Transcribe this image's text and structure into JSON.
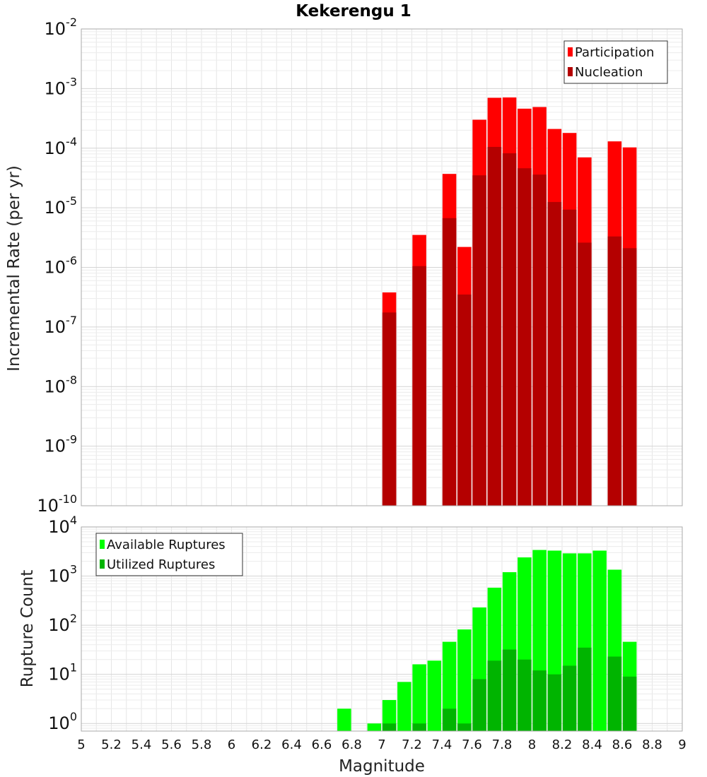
{
  "chart_data": [
    {
      "type": "bar",
      "title": "Kekerengu 1",
      "xlabel": "",
      "ylabel": "Incremental Rate (per yr)",
      "yscale": "log",
      "ylim": [
        1e-10,
        0.01
      ],
      "xlim": [
        5,
        9
      ],
      "grid": true,
      "legend_position": "top-right",
      "series": [
        {
          "name": "Participation",
          "color": "#ff0000",
          "x": [
            7.05,
            7.25,
            7.45,
            7.55,
            7.65,
            7.75,
            7.85,
            7.95,
            8.05,
            8.15,
            8.25,
            8.35,
            8.55,
            8.65
          ],
          "values": [
            3.8e-07,
            3.5e-06,
            3.7e-05,
            2.2e-06,
            0.0003,
            0.0007,
            0.00071,
            0.00046,
            0.00049,
            0.00021,
            0.00018,
            7e-05,
            0.00013,
            0.000103
          ]
        },
        {
          "name": "Nucleation",
          "color": "#b40000",
          "x": [
            7.05,
            7.25,
            7.45,
            7.55,
            7.65,
            7.75,
            7.85,
            7.95,
            8.05,
            8.15,
            8.25,
            8.35,
            8.55,
            8.65
          ],
          "values": [
            1.75e-07,
            1.05e-06,
            6.7e-06,
            3.5e-07,
            3.5e-05,
            0.000105,
            8.2e-05,
            4.6e-05,
            3.6e-05,
            1.25e-05,
            9.3e-06,
            2.6e-06,
            3.3e-06,
            2.1e-06
          ]
        }
      ]
    },
    {
      "type": "bar",
      "title": "",
      "xlabel": "Magnitude",
      "ylabel": "Rupture Count",
      "yscale": "log",
      "ylim": [
        0.7,
        10000.0
      ],
      "xlim": [
        5,
        9
      ],
      "grid": true,
      "legend_position": "top-left",
      "xticks": [
        "5",
        "5.2",
        "5.4",
        "5.6",
        "5.8",
        "6",
        "6.2",
        "6.4",
        "6.6",
        "6.8",
        "7",
        "7.2",
        "7.4",
        "7.6",
        "7.8",
        "8",
        "8.2",
        "8.4",
        "8.6",
        "8.8",
        "9"
      ],
      "series": [
        {
          "name": "Available Ruptures",
          "color": "#00ff00",
          "x": [
            6.75,
            6.95,
            7.05,
            7.15,
            7.25,
            7.35,
            7.45,
            7.55,
            7.65,
            7.75,
            7.85,
            7.95,
            8.05,
            8.15,
            8.25,
            8.35,
            8.45,
            8.55,
            8.65
          ],
          "values": [
            2,
            1,
            3,
            7,
            16,
            19,
            46,
            82,
            230,
            580,
            1200,
            2400,
            3400,
            3300,
            2900,
            2900,
            3300,
            1350,
            46
          ]
        },
        {
          "name": "Utilized Ruptures",
          "color": "#00b400",
          "x": [
            7.05,
            7.25,
            7.45,
            7.55,
            7.65,
            7.75,
            7.85,
            7.95,
            8.05,
            8.15,
            8.25,
            8.35,
            8.55,
            8.65
          ],
          "values": [
            1,
            1,
            2,
            1,
            8,
            19,
            32,
            20,
            12,
            10,
            15,
            35,
            23,
            9
          ]
        }
      ]
    }
  ]
}
